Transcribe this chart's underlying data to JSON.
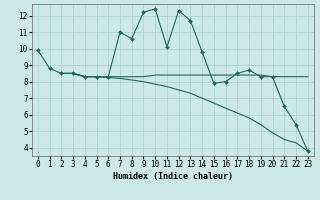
{
  "line1": {
    "x": [
      0,
      1,
      2,
      3,
      4,
      5,
      6,
      7,
      8,
      9,
      10,
      11,
      12,
      13,
      14,
      15,
      16,
      17,
      18,
      19,
      20,
      21,
      22,
      23
    ],
    "y": [
      9.9,
      8.8,
      8.5,
      8.5,
      8.3,
      8.3,
      8.3,
      11.0,
      10.6,
      12.2,
      12.4,
      10.1,
      12.3,
      11.7,
      9.8,
      7.9,
      8.0,
      8.5,
      8.7,
      8.3,
      8.3,
      6.5,
      5.4,
      3.8
    ]
  },
  "line2": {
    "x": [
      2,
      3,
      4,
      5,
      6,
      7,
      8,
      9,
      10,
      11,
      12,
      13,
      14,
      15,
      16,
      17,
      18,
      19,
      20,
      21,
      22,
      23
    ],
    "y": [
      8.5,
      8.5,
      8.3,
      8.3,
      8.3,
      8.3,
      8.3,
      8.3,
      8.4,
      8.4,
      8.4,
      8.4,
      8.4,
      8.4,
      8.4,
      8.4,
      8.4,
      8.4,
      8.3,
      8.3,
      8.3,
      8.3
    ]
  },
  "line3": {
    "x": [
      2,
      3,
      4,
      5,
      6,
      7,
      8,
      9,
      10,
      11,
      12,
      13,
      14,
      15,
      16,
      17,
      18,
      19,
      20,
      21,
      22,
      23
    ],
    "y": [
      8.5,
      8.5,
      8.3,
      8.3,
      8.25,
      8.2,
      8.1,
      8.0,
      7.85,
      7.7,
      7.5,
      7.3,
      7.0,
      6.7,
      6.4,
      6.1,
      5.8,
      5.4,
      4.9,
      4.5,
      4.3,
      3.8
    ]
  },
  "line_color": "#1a6b5e",
  "bg_color": "#cce8e8",
  "grid_color": "#aacece",
  "xlabel": "Humidex (Indice chaleur)",
  "xlim": [
    -0.5,
    23.5
  ],
  "ylim": [
    3.5,
    12.7
  ],
  "yticks": [
    4,
    5,
    6,
    7,
    8,
    9,
    10,
    11,
    12
  ],
  "xticks": [
    0,
    1,
    2,
    3,
    4,
    5,
    6,
    7,
    8,
    9,
    10,
    11,
    12,
    13,
    14,
    15,
    16,
    17,
    18,
    19,
    20,
    21,
    22,
    23
  ],
  "markersize": 2.0,
  "linewidth": 0.8,
  "font_size": 5.5
}
